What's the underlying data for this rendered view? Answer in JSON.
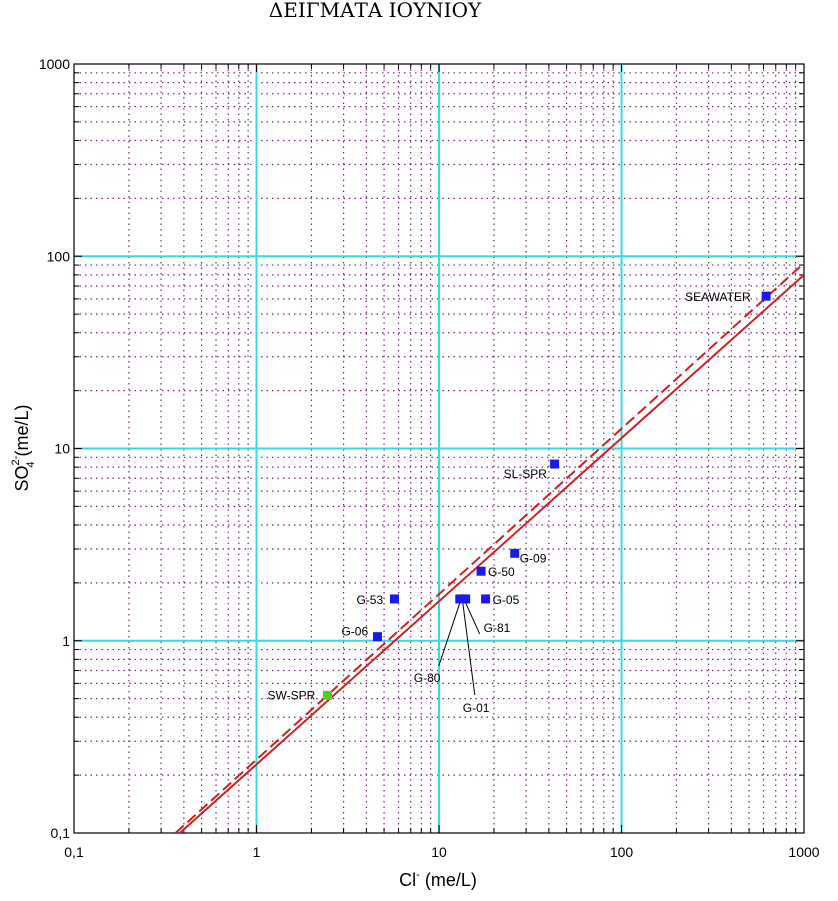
{
  "chart_data": {
    "type": "scatter",
    "title": "ΔΕΙΓΜΑΤΑ ΙΟΥΝΙΟΥ",
    "xlabel": {
      "base": "Cl",
      "sup": "-",
      "unit": " (me/L)"
    },
    "ylabel": {
      "base": "SO",
      "sub": "4",
      "sup": "2-",
      "unit": " (me/L)"
    },
    "xscale": "log",
    "yscale": "log",
    "xlim": [
      0.1,
      1000
    ],
    "ylim": [
      0.1,
      1000
    ],
    "xticks": [
      {
        "value": 0.1,
        "label": "0,1"
      },
      {
        "value": 1,
        "label": "1"
      },
      {
        "value": 10,
        "label": "10"
      },
      {
        "value": 100,
        "label": "100"
      },
      {
        "value": 1000,
        "label": "1000"
      }
    ],
    "yticks": [
      {
        "value": 0.1,
        "label": "0,1"
      },
      {
        "value": 1,
        "label": "1"
      },
      {
        "value": 10,
        "label": "10"
      },
      {
        "value": 100,
        "label": "100"
      },
      {
        "value": 1000,
        "label": "1000"
      }
    ],
    "grid": true,
    "colors": {
      "major_grid": "#33dddd",
      "minor_grid": "#7a2a7a",
      "line": "#cc2222",
      "point": "#1a1aee",
      "point_highlight": "#55cc22"
    },
    "points": [
      {
        "label": "SEAWATER",
        "x": 620,
        "y": 62
      },
      {
        "label": "SL-SPR",
        "x": 43,
        "y": 8.3
      },
      {
        "label": "G-09",
        "x": 26,
        "y": 2.85
      },
      {
        "label": "G-50",
        "x": 17,
        "y": 2.3
      },
      {
        "label": "G-05",
        "x": 18,
        "y": 1.65
      },
      {
        "label": "G-81",
        "x": 14,
        "y": 1.65
      },
      {
        "label": "G-01",
        "x": 13.5,
        "y": 1.65
      },
      {
        "label": "G-80",
        "x": 13,
        "y": 1.65
      },
      {
        "label": "G-53",
        "x": 5.7,
        "y": 1.65
      },
      {
        "label": "G-06",
        "x": 4.6,
        "y": 1.05
      },
      {
        "label": "SW-SPR",
        "x": 2.45,
        "y": 0.52,
        "highlight": true
      }
    ],
    "lines": [
      {
        "style": "solid",
        "points": [
          [
            0.38,
            0.1
          ],
          [
            1000,
            80
          ]
        ]
      },
      {
        "style": "dashed",
        "points": [
          [
            0.36,
            0.1
          ],
          [
            1000,
            92
          ]
        ]
      }
    ]
  }
}
